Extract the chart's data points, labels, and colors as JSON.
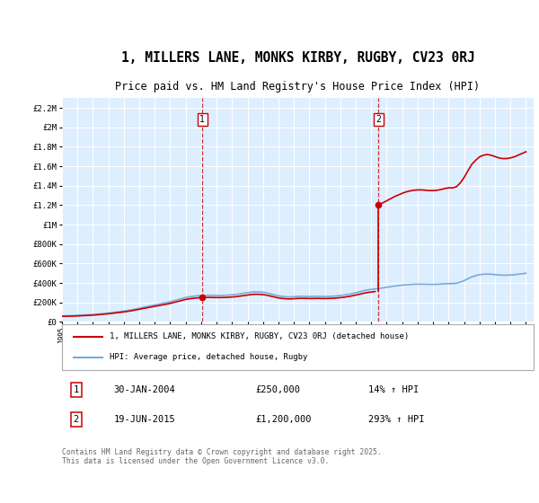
{
  "title": "1, MILLERS LANE, MONKS KIRBY, RUGBY, CV23 0RJ",
  "subtitle": "Price paid vs. HM Land Registry's House Price Index (HPI)",
  "title_fontsize": 10.5,
  "subtitle_fontsize": 8.5,
  "background_color": "#ffffff",
  "plot_bg_color": "#ddeeff",
  "grid_color": "#ffffff",
  "ylim": [
    0,
    2300000
  ],
  "xlim_start": 1995.0,
  "xlim_end": 2025.5,
  "sale1_date": 2004.08,
  "sale1_price": 250000,
  "sale1_label": "1",
  "sale2_date": 2015.46,
  "sale2_price": 1200000,
  "sale2_label": "2",
  "property_line_color": "#cc0000",
  "hpi_line_color": "#7aabdc",
  "legend_property": "1, MILLERS LANE, MONKS KIRBY, RUGBY, CV23 0RJ (detached house)",
  "legend_hpi": "HPI: Average price, detached house, Rugby",
  "annotation1_date": "30-JAN-2004",
  "annotation1_price": "£250,000",
  "annotation1_hpi": "14% ↑ HPI",
  "annotation2_date": "19-JUN-2015",
  "annotation2_price": "£1,200,000",
  "annotation2_hpi": "293% ↑ HPI",
  "footer": "Contains HM Land Registry data © Crown copyright and database right 2025.\nThis data is licensed under the Open Government Licence v3.0.",
  "hpi_data_x": [
    1995.0,
    1995.25,
    1995.5,
    1995.75,
    1996.0,
    1996.25,
    1996.5,
    1996.75,
    1997.0,
    1997.25,
    1997.5,
    1997.75,
    1998.0,
    1998.25,
    1998.5,
    1998.75,
    1999.0,
    1999.25,
    1999.5,
    1999.75,
    2000.0,
    2000.25,
    2000.5,
    2000.75,
    2001.0,
    2001.25,
    2001.5,
    2001.75,
    2002.0,
    2002.25,
    2002.5,
    2002.75,
    2003.0,
    2003.25,
    2003.5,
    2003.75,
    2004.0,
    2004.25,
    2004.5,
    2004.75,
    2005.0,
    2005.25,
    2005.5,
    2005.75,
    2006.0,
    2006.25,
    2006.5,
    2006.75,
    2007.0,
    2007.25,
    2007.5,
    2007.75,
    2008.0,
    2008.25,
    2008.5,
    2008.75,
    2009.0,
    2009.25,
    2009.5,
    2009.75,
    2010.0,
    2010.25,
    2010.5,
    2010.75,
    2011.0,
    2011.25,
    2011.5,
    2011.75,
    2012.0,
    2012.25,
    2012.5,
    2012.75,
    2013.0,
    2013.25,
    2013.5,
    2013.75,
    2014.0,
    2014.25,
    2014.5,
    2014.75,
    2015.0,
    2015.25,
    2015.5,
    2015.75,
    2016.0,
    2016.25,
    2016.5,
    2016.75,
    2017.0,
    2017.25,
    2017.5,
    2017.75,
    2018.0,
    2018.25,
    2018.5,
    2018.75,
    2019.0,
    2019.25,
    2019.5,
    2019.75,
    2020.0,
    2020.25,
    2020.5,
    2020.75,
    2021.0,
    2021.25,
    2021.5,
    2021.75,
    2022.0,
    2022.25,
    2022.5,
    2022.75,
    2023.0,
    2023.25,
    2023.5,
    2023.75,
    2024.0,
    2024.25,
    2024.5,
    2024.75,
    2025.0
  ],
  "hpi_data_y": [
    62000,
    63000,
    64000,
    65000,
    67000,
    69000,
    71000,
    73000,
    76000,
    79000,
    83000,
    87000,
    91000,
    96000,
    101000,
    106000,
    112000,
    118000,
    125000,
    133000,
    141000,
    150000,
    158000,
    166000,
    174000,
    182000,
    190000,
    198000,
    207000,
    218000,
    229000,
    240000,
    251000,
    258000,
    264000,
    268000,
    271000,
    273000,
    274000,
    273000,
    272000,
    272000,
    273000,
    275000,
    278000,
    282000,
    288000,
    294000,
    300000,
    306000,
    309000,
    308000,
    305000,
    298000,
    288000,
    278000,
    268000,
    262000,
    258000,
    257000,
    259000,
    262000,
    264000,
    263000,
    261000,
    262000,
    263000,
    262000,
    261000,
    262000,
    264000,
    267000,
    271000,
    276000,
    283000,
    291000,
    300000,
    310000,
    320000,
    328000,
    334000,
    339000,
    344000,
    350000,
    356000,
    362000,
    368000,
    373000,
    378000,
    382000,
    385000,
    387000,
    388000,
    388000,
    387000,
    386000,
    386000,
    387000,
    389000,
    392000,
    394000,
    394000,
    397000,
    408000,
    424000,
    444000,
    463000,
    475000,
    485000,
    490000,
    492000,
    490000,
    486000,
    482000,
    480000,
    480000,
    482000,
    485000,
    490000,
    495000,
    500000
  ],
  "yticks": [
    0,
    200000,
    400000,
    600000,
    800000,
    1000000,
    1200000,
    1400000,
    1600000,
    1800000,
    2000000,
    2200000
  ],
  "ytick_labels": [
    "£0",
    "£200K",
    "£400K",
    "£600K",
    "£800K",
    "£1M",
    "£1.2M",
    "£1.4M",
    "£1.6M",
    "£1.8M",
    "£2M",
    "£2.2M"
  ],
  "xticks": [
    1995,
    1996,
    1997,
    1998,
    1999,
    2000,
    2001,
    2002,
    2003,
    2004,
    2005,
    2006,
    2007,
    2008,
    2009,
    2010,
    2011,
    2012,
    2013,
    2014,
    2015,
    2016,
    2017,
    2018,
    2019,
    2020,
    2021,
    2022,
    2023,
    2024,
    2025
  ]
}
